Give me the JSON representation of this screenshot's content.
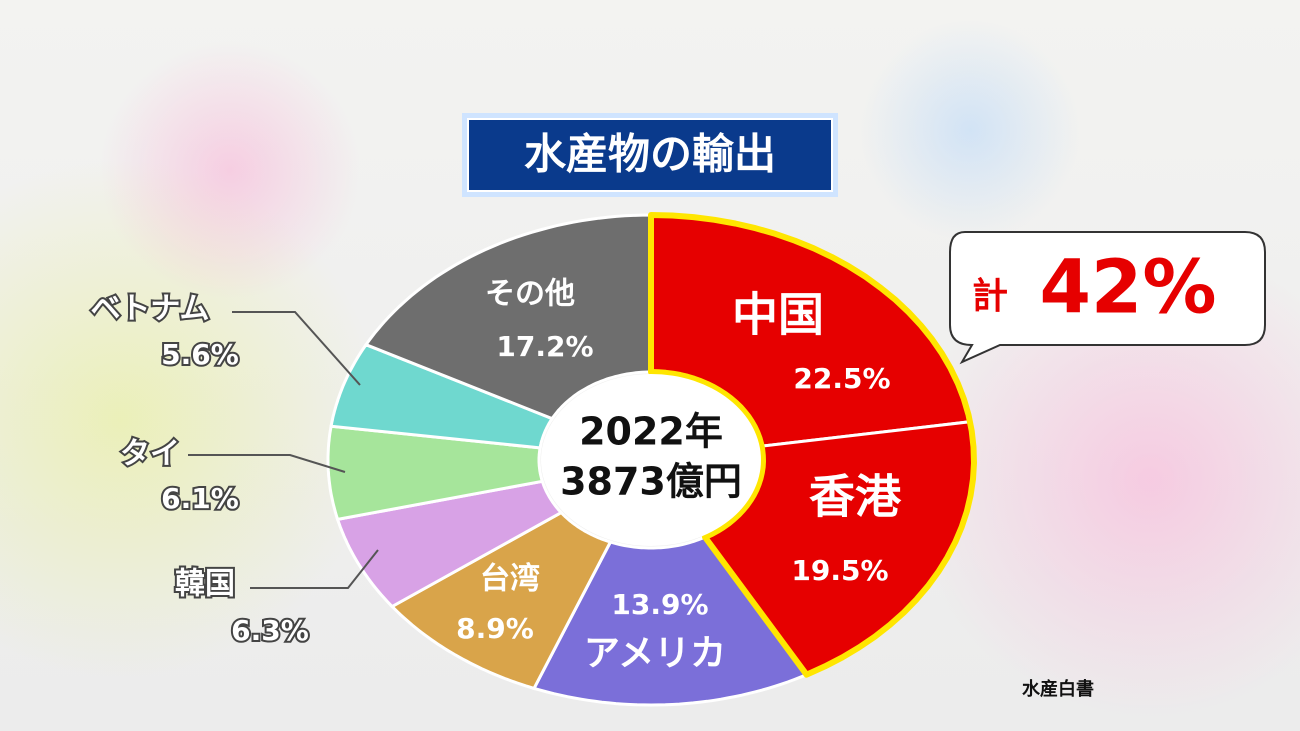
{
  "chart_data": {
    "type": "pie",
    "title": "水産物の輸出",
    "categories": [
      "中国",
      "香港",
      "アメリカ",
      "台湾",
      "韓国",
      "タイ",
      "ベトナム",
      "その他"
    ],
    "values": [
      22.5,
      19.5,
      13.9,
      8.9,
      6.3,
      6.1,
      5.6,
      17.2
    ],
    "value_labels": [
      "22.5%",
      "19.5%",
      "13.9%",
      "8.9%",
      "6.3%",
      "6.1%",
      "5.6%",
      "17.2%"
    ],
    "colors": [
      "#e60000",
      "#e60000",
      "#7b6fd9",
      "#d9a44a",
      "#d8a2e6",
      "#a6e59b",
      "#6fd8cf",
      "#6e6e6e"
    ],
    "highlight_categories": [
      "中国",
      "香港"
    ],
    "highlight_color": "#ffe600",
    "center_year": "2022年",
    "center_total": "3873億円",
    "callout_prefix": "計",
    "callout_text": "42%",
    "source": "水産白書"
  }
}
